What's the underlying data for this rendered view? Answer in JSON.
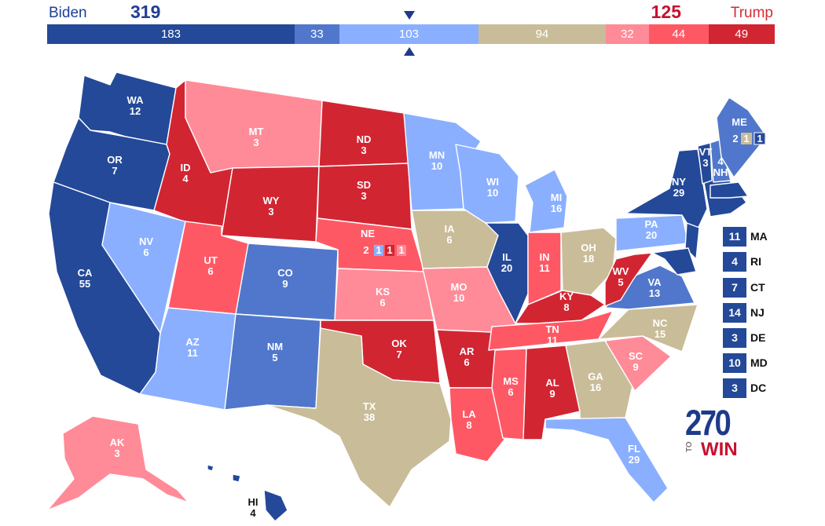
{
  "header": {
    "left_candidate": "Biden",
    "left_total": "319",
    "right_candidate": "Trump",
    "right_total": "125"
  },
  "colors": {
    "safe_dem": "#244999",
    "likely_dem": "#5077cb",
    "lean_dem": "#8aafff",
    "tossup": "#c9bc98",
    "lean_rep": "#ff8b98",
    "likely_rep": "#ff5865",
    "safe_rep": "#d22532"
  },
  "bar": [
    {
      "label": "183",
      "value": 183,
      "color": "#244999"
    },
    {
      "label": "33",
      "value": 33,
      "color": "#5077cb"
    },
    {
      "label": "103",
      "value": 103,
      "color": "#8aafff"
    },
    {
      "label": "94",
      "value": 94,
      "color": "#c9bc98"
    },
    {
      "label": "32",
      "value": 32,
      "color": "#ff8b98"
    },
    {
      "label": "44",
      "value": 44,
      "color": "#ff5865"
    },
    {
      "label": "49",
      "value": 49,
      "color": "#d22532"
    }
  ],
  "states": {
    "WA": "12",
    "OR": "7",
    "CA": "55",
    "ID": "4",
    "NV": "6",
    "MT": "3",
    "WY": "3",
    "UT": "6",
    "AZ": "11",
    "CO": "9",
    "NM": "5",
    "ND": "3",
    "SD": "3",
    "NE": "",
    "KS": "6",
    "OK": "7",
    "TX": "38",
    "MN": "10",
    "IA": "6",
    "MO": "10",
    "AR": "6",
    "LA": "8",
    "WI": "10",
    "IL": "20",
    "MI": "16",
    "IN": "11",
    "OH": "18",
    "KY": "8",
    "TN": "11",
    "MS": "6",
    "AL": "9",
    "GA": "16",
    "FL": "29",
    "SC": "9",
    "NC": "15",
    "VA": "13",
    "WV": "5",
    "PA": "20",
    "NY": "29",
    "VT": "3",
    "NH": "4",
    "ME": "",
    "AK": "3",
    "HI": "4"
  },
  "split_votes": {
    "NE": [
      "2",
      "1",
      "1",
      "1"
    ],
    "ME": [
      "2",
      "1",
      "1"
    ]
  },
  "small_states": [
    {
      "abbr": "MA",
      "votes": "11",
      "color": "#244999"
    },
    {
      "abbr": "RI",
      "votes": "4",
      "color": "#244999"
    },
    {
      "abbr": "CT",
      "votes": "7",
      "color": "#244999"
    },
    {
      "abbr": "NJ",
      "votes": "14",
      "color": "#244999"
    },
    {
      "abbr": "DE",
      "votes": "3",
      "color": "#244999"
    },
    {
      "abbr": "MD",
      "votes": "10",
      "color": "#244999"
    },
    {
      "abbr": "DC",
      "votes": "3",
      "color": "#244999"
    }
  ],
  "logo": {
    "number": "270",
    "to": "TO",
    "win": "WIN"
  }
}
